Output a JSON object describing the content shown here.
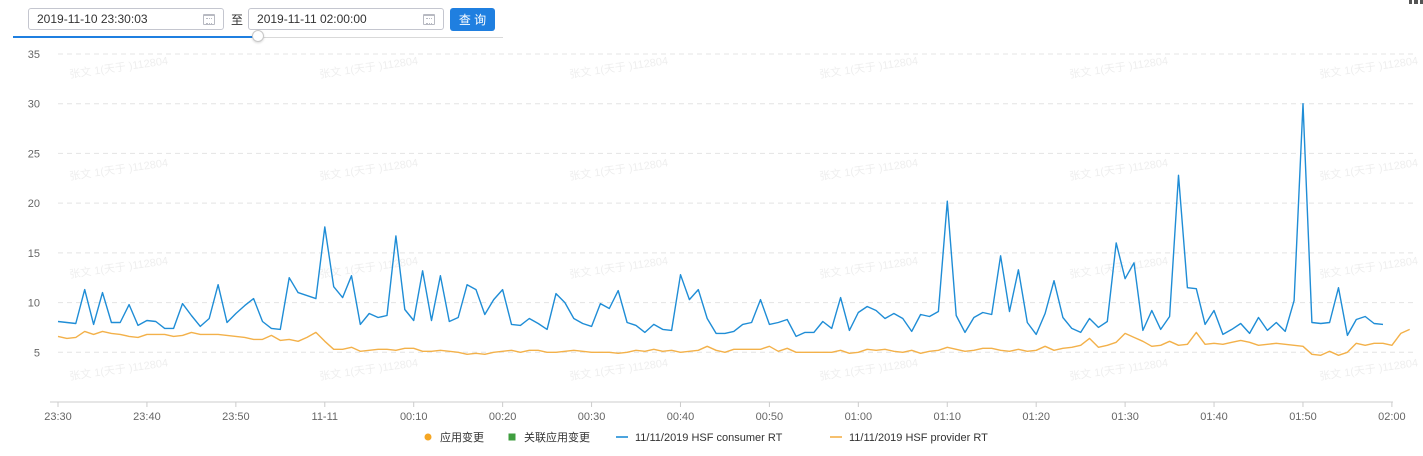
{
  "query": {
    "start": "2019-11-10 23:30:03",
    "separator": "至",
    "end": "2019-11-11 02:00:00",
    "button_label": "查 询",
    "range_fraction": 0.5
  },
  "colors": {
    "consumer": "#1f8dd6",
    "provider": "#f3b14a",
    "app_change": "#f5a623",
    "related_change": "#3f9e3f",
    "grid": "#e4e4e4",
    "axis": "#cccccc",
    "button": "#1f7fe0"
  },
  "chart_data": {
    "type": "line",
    "title": "",
    "xlabel": "",
    "ylabel": "",
    "ylim": [
      0,
      35
    ],
    "yticks": [
      5,
      10,
      15,
      20,
      25,
      30,
      35
    ],
    "xlim": [
      "23:30",
      "02:00"
    ],
    "xticks": [
      "23:30",
      "23:40",
      "23:50",
      "11-11",
      "00:10",
      "00:20",
      "00:30",
      "00:40",
      "00:50",
      "01:00",
      "01:10",
      "01:20",
      "01:30",
      "01:40",
      "01:50",
      "02:00"
    ],
    "sample_interval_minutes": 1,
    "grid": true,
    "legend_position": "bottom",
    "legend": [
      {
        "name": "应用变更",
        "marker": "circle",
        "color": "#f5a623"
      },
      {
        "name": "关联应用变更",
        "marker": "square",
        "color": "#3f9e3f"
      },
      {
        "name": "11/11/2019 HSF consumer RT",
        "marker": "line",
        "color": "#1f8dd6"
      },
      {
        "name": "11/11/2019 HSF provider RT",
        "marker": "line",
        "color": "#f3b14a"
      }
    ],
    "series": [
      {
        "name": "11/11/2019 HSF consumer RT",
        "color": "#1f8dd6",
        "values": [
          8.1,
          8.0,
          7.9,
          11.3,
          7.8,
          11.0,
          8.0,
          8.0,
          9.8,
          7.7,
          8.2,
          8.1,
          7.4,
          7.4,
          9.9,
          8.7,
          7.6,
          8.4,
          11.8,
          8.0,
          8.9,
          9.7,
          10.4,
          8.1,
          7.4,
          7.3,
          12.5,
          11.0,
          10.7,
          10.4,
          17.6,
          11.6,
          10.5,
          12.7,
          7.8,
          8.9,
          8.5,
          8.7,
          16.7,
          9.3,
          8.2,
          13.2,
          8.2,
          12.7,
          8.1,
          8.5,
          11.8,
          11.3,
          8.8,
          10.3,
          11.3,
          7.8,
          7.7,
          8.4,
          7.9,
          7.3,
          10.9,
          10.0,
          8.4,
          7.9,
          7.6,
          9.9,
          9.4,
          11.2,
          8.0,
          7.7,
          7.0,
          7.8,
          7.3,
          7.2,
          12.8,
          10.3,
          11.3,
          8.4,
          6.9,
          6.9,
          7.1,
          7.8,
          8.0,
          10.3,
          7.8,
          8.0,
          8.3,
          6.6,
          7.0,
          7.0,
          8.1,
          7.4,
          10.5,
          7.2,
          9.0,
          9.6,
          9.2,
          8.4,
          8.9,
          8.4,
          7.1,
          8.8,
          8.6,
          9.1,
          20.2,
          8.7,
          7.0,
          8.5,
          9.0,
          8.8,
          14.7,
          9.1,
          13.3,
          8.0,
          6.8,
          8.9,
          12.2,
          8.5,
          7.4,
          7.0,
          8.4,
          7.5,
          8.1,
          16.0,
          12.4,
          14.0,
          7.2,
          9.2,
          7.3,
          8.6,
          22.8,
          11.5,
          11.4,
          7.8,
          9.2,
          6.8,
          7.3,
          7.9,
          6.9,
          8.5,
          7.2,
          8.0,
          7.1,
          10.2,
          30.0,
          8.0,
          7.9,
          8.0,
          11.5,
          6.7,
          8.3,
          8.6,
          7.9,
          7.8
        ]
      },
      {
        "name": "11/11/2019 HSF provider RT",
        "color": "#f3b14a",
        "values": [
          6.6,
          6.4,
          6.5,
          7.1,
          6.8,
          7.1,
          6.9,
          6.8,
          6.6,
          6.5,
          6.8,
          6.8,
          6.8,
          6.6,
          6.7,
          7.0,
          6.8,
          6.8,
          6.8,
          6.7,
          6.6,
          6.5,
          6.3,
          6.3,
          6.7,
          6.2,
          6.3,
          6.1,
          6.5,
          7.0,
          6.1,
          5.3,
          5.3,
          5.5,
          5.1,
          5.2,
          5.3,
          5.3,
          5.2,
          5.4,
          5.4,
          5.1,
          5.1,
          5.2,
          5.1,
          5.0,
          4.8,
          4.9,
          4.8,
          5.0,
          5.1,
          5.2,
          5.0,
          5.2,
          5.2,
          5.0,
          5.0,
          5.1,
          5.2,
          5.1,
          5.0,
          5.0,
          5.0,
          4.9,
          5.0,
          5.2,
          5.1,
          5.3,
          5.1,
          5.2,
          5.0,
          5.1,
          5.2,
          5.6,
          5.2,
          5.0,
          5.3,
          5.3,
          5.3,
          5.3,
          5.6,
          5.1,
          5.4,
          5.0,
          5.0,
          5.0,
          5.0,
          5.0,
          5.2,
          4.9,
          5.0,
          5.3,
          5.2,
          5.3,
          5.1,
          5.0,
          5.2,
          4.9,
          5.1,
          5.2,
          5.5,
          5.3,
          5.1,
          5.2,
          5.4,
          5.4,
          5.2,
          5.1,
          5.3,
          5.1,
          5.2,
          5.6,
          5.2,
          5.4,
          5.5,
          5.7,
          6.4,
          5.5,
          5.7,
          6.0,
          6.9,
          6.5,
          6.1,
          5.6,
          5.7,
          6.1,
          5.7,
          5.8,
          7.0,
          5.8,
          5.9,
          5.8,
          6.0,
          6.2,
          6.0,
          5.7,
          5.8,
          5.9,
          5.8,
          5.7,
          5.6,
          4.8,
          4.7,
          5.1,
          4.7,
          5.0,
          5.9,
          5.7,
          5.9,
          5.9,
          5.7,
          6.9,
          7.3
        ]
      }
    ]
  },
  "watermark": {
    "text": "张文 1(天于 )112804"
  }
}
